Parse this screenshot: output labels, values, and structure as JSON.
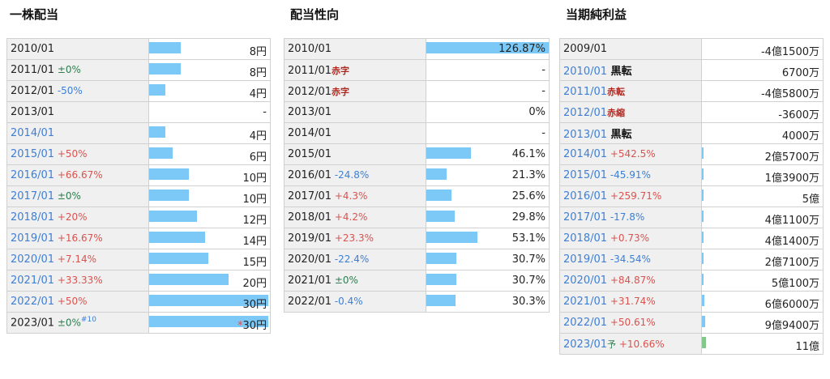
{
  "dividend": {
    "title": "一株配当",
    "rows": [
      {
        "year": "2010/01",
        "year_blue": false,
        "change": "",
        "change_type": "",
        "note": "",
        "value": "8円",
        "mark": "",
        "bar": 0.125
      },
      {
        "year": "2011/01",
        "year_blue": false,
        "change": "±0%",
        "change_type": "zero",
        "note": "",
        "value": "8円",
        "mark": "",
        "bar": 0.125
      },
      {
        "year": "2012/01",
        "year_blue": false,
        "change": "-50%",
        "change_type": "neg",
        "note": "",
        "value": "4円",
        "mark": "",
        "bar": 0.0625
      },
      {
        "year": "2013/01",
        "year_blue": false,
        "change": "",
        "change_type": "",
        "note": "",
        "value": "-",
        "mark": "",
        "bar": 0
      },
      {
        "year": "2014/01",
        "year_blue": true,
        "change": "",
        "change_type": "",
        "note": "",
        "value": "4円",
        "mark": "",
        "bar": 0.0625
      },
      {
        "year": "2015/01",
        "year_blue": true,
        "change": "+50%",
        "change_type": "pos",
        "note": "",
        "value": "6円",
        "mark": "",
        "bar": 0.094
      },
      {
        "year": "2016/01",
        "year_blue": true,
        "change": "+66.67%",
        "change_type": "pos",
        "note": "",
        "value": "10円",
        "mark": "",
        "bar": 0.156
      },
      {
        "year": "2017/01",
        "year_blue": true,
        "change": "±0%",
        "change_type": "zero",
        "note": "",
        "value": "10円",
        "mark": "",
        "bar": 0.156
      },
      {
        "year": "2018/01",
        "year_blue": true,
        "change": "+20%",
        "change_type": "pos",
        "note": "",
        "value": "12円",
        "mark": "",
        "bar": 0.188
      },
      {
        "year": "2019/01",
        "year_blue": true,
        "change": "+16.67%",
        "change_type": "pos",
        "note": "",
        "value": "14円",
        "mark": "",
        "bar": 0.219
      },
      {
        "year": "2020/01",
        "year_blue": true,
        "change": "+7.14%",
        "change_type": "pos",
        "note": "",
        "value": "15円",
        "mark": "",
        "bar": 0.234
      },
      {
        "year": "2021/01",
        "year_blue": true,
        "change": "+33.33%",
        "change_type": "pos",
        "note": "",
        "value": "20円",
        "mark": "",
        "bar": 0.3125
      },
      {
        "year": "2022/01",
        "year_blue": true,
        "change": "+50%",
        "change_type": "pos",
        "note": "",
        "value": "30円",
        "mark": "",
        "bar": 0.47
      },
      {
        "year": "2023/01",
        "year_blue": false,
        "change": "±0%",
        "change_type": "zero",
        "note": "#10",
        "value": "30円",
        "mark": "*",
        "bar": 0.47
      }
    ]
  },
  "payout": {
    "title": "配当性向",
    "rows": [
      {
        "year": "2010/01",
        "change": "",
        "change_type": "",
        "tag": "",
        "value": "126.87%",
        "bar": 1.0
      },
      {
        "year": "2011/01",
        "change": "",
        "change_type": "",
        "tag": "赤字",
        "value": "-",
        "bar": 0
      },
      {
        "year": "2012/01",
        "change": "",
        "change_type": "",
        "tag": "赤字",
        "value": "-",
        "bar": 0
      },
      {
        "year": "2013/01",
        "change": "",
        "change_type": "",
        "tag": "",
        "value": "0%",
        "bar": 0
      },
      {
        "year": "2014/01",
        "change": "",
        "change_type": "",
        "tag": "",
        "value": "-",
        "bar": 0
      },
      {
        "year": "2015/01",
        "change": "",
        "change_type": "",
        "tag": "",
        "value": "46.1%",
        "bar": 0.363
      },
      {
        "year": "2016/01",
        "change": "-24.8%",
        "change_type": "neg",
        "tag": "",
        "value": "21.3%",
        "bar": 0.168
      },
      {
        "year": "2017/01",
        "change": "+4.3%",
        "change_type": "pos",
        "tag": "",
        "value": "25.6%",
        "bar": 0.202
      },
      {
        "year": "2018/01",
        "change": "+4.2%",
        "change_type": "pos",
        "tag": "",
        "value": "29.8%",
        "bar": 0.235
      },
      {
        "year": "2019/01",
        "change": "+23.3%",
        "change_type": "pos",
        "tag": "",
        "value": "53.1%",
        "bar": 0.418
      },
      {
        "year": "2020/01",
        "change": "-22.4%",
        "change_type": "neg",
        "tag": "",
        "value": "30.7%",
        "bar": 0.242
      },
      {
        "year": "2021/01",
        "change": "±0%",
        "change_type": "zero",
        "tag": "",
        "value": "30.7%",
        "bar": 0.242
      },
      {
        "year": "2022/01",
        "change": "-0.4%",
        "change_type": "neg",
        "tag": "",
        "value": "30.3%",
        "bar": 0.239
      }
    ]
  },
  "profit": {
    "title": "当期純利益",
    "rows": [
      {
        "year": "2009/01",
        "year_blue": false,
        "change": "",
        "change_type": "",
        "tag": "",
        "tag_type": "",
        "value": "-4億1500万",
        "bar": 0
      },
      {
        "year": "2010/01",
        "year_blue": true,
        "change": "",
        "change_type": "",
        "tag": "黒転",
        "tag_type": "black",
        "value": "6700万",
        "bar": 0
      },
      {
        "year": "2011/01",
        "year_blue": true,
        "change": "",
        "change_type": "",
        "tag": "赤転",
        "tag_type": "red",
        "value": "-4億5800万",
        "bar": 0
      },
      {
        "year": "2012/01",
        "year_blue": true,
        "change": "",
        "change_type": "",
        "tag": "赤縮",
        "tag_type": "red",
        "value": "-3600万",
        "bar": 0
      },
      {
        "year": "2013/01",
        "year_blue": true,
        "change": "",
        "change_type": "",
        "tag": "黒転",
        "tag_type": "black",
        "value": "4000万",
        "bar": 0
      },
      {
        "year": "2014/01",
        "year_blue": true,
        "change": "+542.5%",
        "change_type": "pos",
        "tag": "",
        "tag_type": "",
        "value": "2億5700万",
        "bar": 0.012
      },
      {
        "year": "2015/01",
        "year_blue": true,
        "change": "-45.91%",
        "change_type": "neg",
        "tag": "",
        "tag_type": "",
        "value": "1億3900万",
        "bar": 0.01
      },
      {
        "year": "2016/01",
        "year_blue": true,
        "change": "+259.71%",
        "change_type": "pos",
        "tag": "",
        "tag_type": "",
        "value": "5億",
        "bar": 0.015
      },
      {
        "year": "2017/01",
        "year_blue": true,
        "change": "-17.8%",
        "change_type": "neg",
        "tag": "",
        "tag_type": "",
        "value": "4億1100万",
        "bar": 0.015
      },
      {
        "year": "2018/01",
        "year_blue": true,
        "change": "+0.73%",
        "change_type": "pos",
        "tag": "",
        "tag_type": "",
        "value": "4億1400万",
        "bar": 0.015
      },
      {
        "year": "2019/01",
        "year_blue": true,
        "change": "-34.54%",
        "change_type": "neg",
        "tag": "",
        "tag_type": "",
        "value": "2億7100万",
        "bar": 0.012
      },
      {
        "year": "2020/01",
        "year_blue": true,
        "change": "+84.87%",
        "change_type": "pos",
        "tag": "",
        "tag_type": "",
        "value": "5億100万",
        "bar": 0.015
      },
      {
        "year": "2021/01",
        "year_blue": true,
        "change": "+31.74%",
        "change_type": "pos",
        "tag": "",
        "tag_type": "",
        "value": "6億6000万",
        "bar": 0.02
      },
      {
        "year": "2022/01",
        "year_blue": true,
        "change": "+50.61%",
        "change_type": "pos",
        "tag": "",
        "tag_type": "",
        "value": "9億9400万",
        "bar": 0.027
      },
      {
        "year": "2023/01",
        "year_blue": true,
        "change": "+10.66%",
        "change_type": "pos",
        "tag": "予",
        "tag_type": "small",
        "value": "11億",
        "bar": 0.03,
        "bar_color": "green"
      }
    ]
  }
}
